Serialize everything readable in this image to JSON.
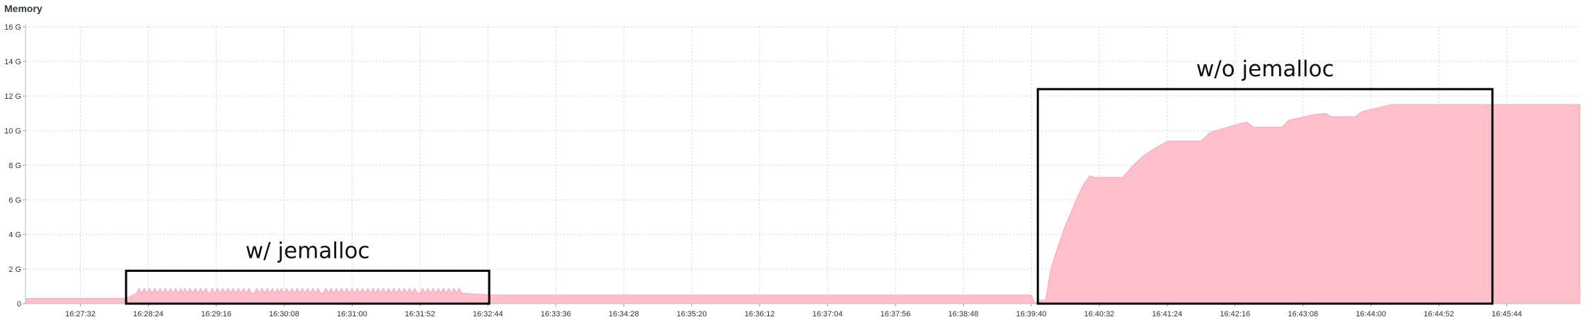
{
  "chart_data": {
    "type": "area",
    "title": "Memory",
    "xlabel": "",
    "ylabel": "",
    "y_ticks": [
      "0",
      "2 G",
      "4 G",
      "6 G",
      "8 G",
      "10 G",
      "12 G",
      "14 G",
      "16 G"
    ],
    "ylim": [
      0,
      16
    ],
    "x_ticks": [
      "16:27:32",
      "16:28:24",
      "16:29:16",
      "16:30:08",
      "16:31:00",
      "16:31:52",
      "16:32:44",
      "16:33:36",
      "16:34:28",
      "16:35:20",
      "16:36:12",
      "16:37:04",
      "16:37:56",
      "16:38:48",
      "16:39:40",
      "16:40:32",
      "16:41:24",
      "16:42:16",
      "16:43:08",
      "16:44:00",
      "16:44:52",
      "16:45:44"
    ],
    "x_unit": "seconds since 00:00 (time of day)",
    "xlim": [
      59210,
      60400
    ],
    "grid": true,
    "colors": {
      "fill": "#ffc0cb",
      "line": "#f4a6b5",
      "grid": "#d0d0d0",
      "box": "#000000"
    },
    "series": [
      {
        "name": "",
        "points": [
          [
            59210,
            0.3
          ],
          [
            59278,
            0.3
          ],
          [
            59287,
            0.3
          ],
          [
            59295,
            0.6
          ],
          [
            59330,
            0.6
          ],
          [
            59351,
            0.6
          ],
          [
            59385,
            0.6
          ],
          [
            59404,
            0.6
          ],
          [
            59438,
            0.6
          ],
          [
            59458,
            0.6
          ],
          [
            59490,
            0.6
          ],
          [
            59512,
            0.6
          ],
          [
            59545,
            0.6
          ],
          [
            59565,
            0.5
          ],
          [
            59980,
            0.5
          ],
          [
            59983,
            0.0
          ],
          [
            59985,
            0.2
          ],
          [
            59991,
            0.2
          ],
          [
            59995,
            2.0
          ],
          [
            60000,
            3.2
          ],
          [
            60005,
            4.3
          ],
          [
            60010,
            5.2
          ],
          [
            60015,
            6.1
          ],
          [
            60020,
            6.9
          ],
          [
            60025,
            7.4
          ],
          [
            60028,
            7.3
          ],
          [
            60050,
            7.3
          ],
          [
            60057,
            7.9
          ],
          [
            60065,
            8.5
          ],
          [
            60075,
            9.0
          ],
          [
            60085,
            9.4
          ],
          [
            60110,
            9.4
          ],
          [
            60117,
            9.9
          ],
          [
            60135,
            10.3
          ],
          [
            60145,
            10.5
          ],
          [
            60150,
            10.2
          ],
          [
            60172,
            10.2
          ],
          [
            60177,
            10.6
          ],
          [
            60195,
            10.9
          ],
          [
            60205,
            11.0
          ],
          [
            60210,
            10.8
          ],
          [
            60228,
            10.8
          ],
          [
            60233,
            11.1
          ],
          [
            60250,
            11.4
          ],
          [
            60255,
            11.5
          ],
          [
            60258,
            11.5
          ],
          [
            60400,
            11.5
          ]
        ]
      }
    ],
    "annotations": [
      {
        "text": "w/ jemalloc",
        "x_range": [
          59287,
          59565
        ],
        "y_range": [
          0,
          1.9
        ]
      },
      {
        "text": "w/o jemalloc",
        "x_range": [
          59985,
          60333
        ],
        "y_range": [
          0,
          12.4
        ]
      }
    ]
  }
}
